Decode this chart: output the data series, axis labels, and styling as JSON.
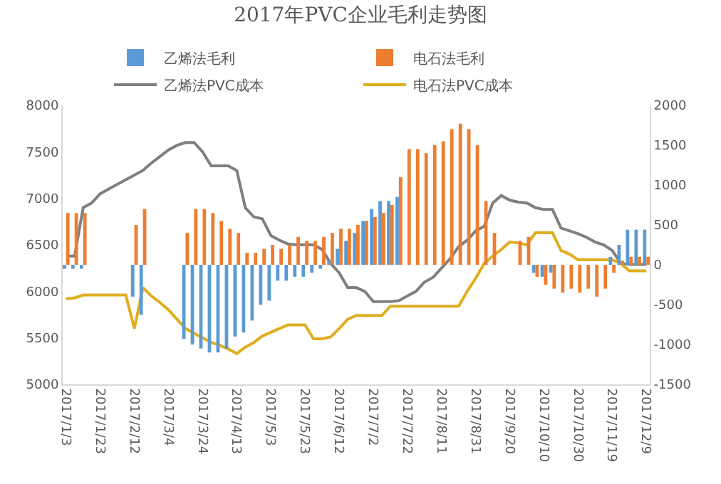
{
  "chart_data": {
    "type": "bar",
    "title": "2017年PVC企业毛利走势图",
    "x": [
      "2017-01-03",
      "2017-01-08",
      "2017-01-13",
      "2017-01-18",
      "2017-01-23",
      "2017-01-28",
      "2017-02-02",
      "2017-02-07",
      "2017-02-12",
      "2017-02-17",
      "2017-02-22",
      "2017-02-27",
      "2017-03-04",
      "2017-03-09",
      "2017-03-14",
      "2017-03-19",
      "2017-03-24",
      "2017-03-29",
      "2017-04-03",
      "2017-04-08",
      "2017-04-13",
      "2017-04-18",
      "2017-04-23",
      "2017-04-28",
      "2017-05-03",
      "2017-05-08",
      "2017-05-13",
      "2017-05-18",
      "2017-05-23",
      "2017-05-28",
      "2017-06-02",
      "2017-06-07",
      "2017-06-12",
      "2017-06-17",
      "2017-06-22",
      "2017-06-27",
      "2017-07-02",
      "2017-07-07",
      "2017-07-12",
      "2017-07-17",
      "2017-07-22",
      "2017-07-27",
      "2017-08-01",
      "2017-08-06",
      "2017-08-11",
      "2017-08-16",
      "2017-08-21",
      "2017-08-26",
      "2017-08-31",
      "2017-09-05",
      "2017-09-10",
      "2017-09-15",
      "2017-09-20",
      "2017-09-25",
      "2017-09-30",
      "2017-10-05",
      "2017-10-10",
      "2017-10-15",
      "2017-10-20",
      "2017-10-25",
      "2017-10-30",
      "2017-11-04",
      "2017-11-09",
      "2017-11-14",
      "2017-11-19",
      "2017-11-24",
      "2017-11-29",
      "2017-12-04",
      "2017-12-09"
    ],
    "series": [
      {
        "name": "乙烯法毛利",
        "axis": "y2",
        "color": "#5b9bd5",
        "values": [
          -50,
          -50,
          -50,
          null,
          null,
          null,
          null,
          null,
          -400,
          -630,
          null,
          null,
          null,
          null,
          -930,
          -1000,
          -1050,
          -1100,
          -1100,
          -1050,
          -900,
          -850,
          -700,
          -500,
          -450,
          -200,
          -200,
          -150,
          -150,
          -100,
          -50,
          50,
          200,
          300,
          400,
          550,
          700,
          800,
          800,
          850,
          null,
          null,
          null,
          null,
          null,
          null,
          null,
          null,
          null,
          null,
          null,
          null,
          null,
          null,
          null,
          -100,
          -150,
          -100,
          null,
          null,
          null,
          null,
          null,
          null,
          100,
          250,
          440,
          440,
          440
        ]
      },
      {
        "name": "电石法毛利",
        "axis": "y2",
        "color": "#ed7d31",
        "values": [
          650,
          650,
          650,
          null,
          null,
          null,
          null,
          null,
          500,
          700,
          null,
          null,
          null,
          null,
          400,
          700,
          700,
          650,
          550,
          450,
          400,
          150,
          150,
          200,
          250,
          200,
          250,
          350,
          300,
          300,
          350,
          400,
          450,
          450,
          500,
          550,
          600,
          650,
          750,
          1100,
          1450,
          1450,
          1400,
          1500,
          1550,
          1700,
          1770,
          1700,
          1500,
          800,
          400,
          null,
          null,
          300,
          350,
          -150,
          -250,
          -300,
          -350,
          -300,
          -350,
          -300,
          -400,
          -300,
          -100,
          50,
          100,
          100,
          100
        ]
      },
      {
        "name": "乙烯法PVC成本",
        "type": "line",
        "color": "#7f7f7f",
        "values": [
          6380,
          6380,
          6900,
          6950,
          7050,
          7100,
          7150,
          7200,
          7250,
          7300,
          7380,
          7450,
          7520,
          7570,
          7600,
          7600,
          7500,
          7350,
          7350,
          7350,
          7300,
          6900,
          6800,
          6780,
          6600,
          6550,
          6510,
          6500,
          6500,
          6500,
          6450,
          6300,
          6200,
          6040,
          6040,
          6000,
          5890,
          5890,
          5890,
          5900,
          5950,
          6000,
          6100,
          6150,
          6250,
          6350,
          6480,
          6550,
          6650,
          6700,
          6950,
          7030,
          6980,
          6960,
          6950,
          6900,
          6880,
          6880,
          6680,
          6650,
          6620,
          6580,
          6530,
          6500,
          6440,
          6300,
          6290,
          6290,
          6290
        ]
      },
      {
        "name": "电石法PVC成本",
        "type": "line",
        "color": "#e0ad1f",
        "values": [
          5920,
          5930,
          5960,
          5960,
          5960,
          5960,
          5960,
          5960,
          5600,
          6040,
          5950,
          5880,
          5800,
          5700,
          5600,
          5550,
          5500,
          5450,
          5420,
          5380,
          5330,
          5400,
          5450,
          5520,
          5560,
          5600,
          5640,
          5640,
          5640,
          5490,
          5490,
          5510,
          5600,
          5700,
          5740,
          5740,
          5740,
          5740,
          5840,
          5840,
          5840,
          5840,
          5840,
          5840,
          5840,
          5840,
          5840,
          6000,
          6140,
          6300,
          6380,
          6450,
          6530,
          6520,
          6500,
          6630,
          6630,
          6630,
          6440,
          6400,
          6340,
          6340,
          6340,
          6340,
          6340,
          6300,
          6220,
          6220,
          6220
        ]
      }
    ],
    "xlim": [
      "2017-01-01",
      "2017-12-11"
    ],
    "xticks": [
      {
        "value": "2017-01-03",
        "label": "2017/1/3"
      },
      {
        "value": "2017-01-23",
        "label": "2017/1/23"
      },
      {
        "value": "2017-02-12",
        "label": "2017/2/12"
      },
      {
        "value": "2017-03-04",
        "label": "2017/3/4"
      },
      {
        "value": "2017-03-24",
        "label": "2017/3/24"
      },
      {
        "value": "2017-04-13",
        "label": "2017/4/13"
      },
      {
        "value": "2017-05-03",
        "label": "2017/5/3"
      },
      {
        "value": "2017-05-23",
        "label": "2017/5/23"
      },
      {
        "value": "2017-06-12",
        "label": "2017/6/12"
      },
      {
        "value": "2017-07-02",
        "label": "2017/7/2"
      },
      {
        "value": "2017-07-22",
        "label": "2017/7/22"
      },
      {
        "value": "2017-08-11",
        "label": "2017/8/11"
      },
      {
        "value": "2017-08-31",
        "label": "2017/8/31"
      },
      {
        "value": "2017-09-20",
        "label": "2017/9/20"
      },
      {
        "value": "2017-10-10",
        "label": "2017/10/10"
      },
      {
        "value": "2017-10-30",
        "label": "2017/10/30"
      },
      {
        "value": "2017-11-19",
        "label": "2017/11/19"
      },
      {
        "value": "2017-12-09",
        "label": "2017/12/9"
      }
    ],
    "ylim": [
      5000,
      8000
    ],
    "yticks": [
      5000,
      5500,
      6000,
      6500,
      7000,
      7500,
      8000
    ],
    "y2lim": [
      -1500,
      2000
    ],
    "y2ticks": [
      -1500,
      -1000,
      -500,
      0,
      500,
      1000,
      1500,
      2000
    ],
    "legend": "top",
    "grid": false
  }
}
